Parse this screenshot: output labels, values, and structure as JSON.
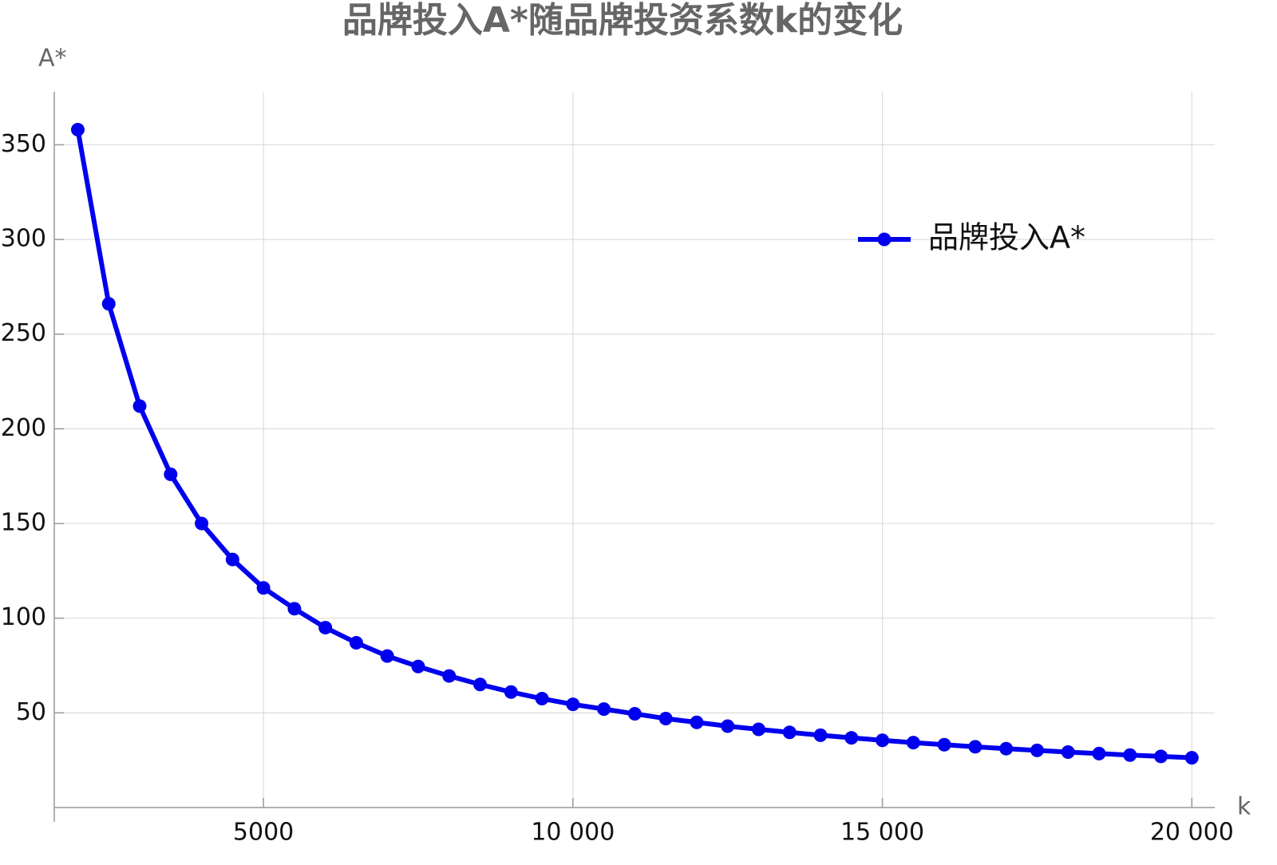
{
  "chart_data": {
    "type": "line",
    "title": "品牌投入A*随品牌投资系数k的变化",
    "xlabel": "k",
    "ylabel": "A*",
    "x": [
      2000,
      2500,
      3000,
      3500,
      4000,
      4500,
      5000,
      5500,
      6000,
      6500,
      7000,
      7500,
      8000,
      8500,
      9000,
      9500,
      10000,
      10500,
      11000,
      11500,
      12000,
      12500,
      13000,
      13500,
      14000,
      14500,
      15000,
      15500,
      16000,
      16500,
      17000,
      17500,
      18000,
      18500,
      19000,
      19500,
      20000
    ],
    "series": [
      {
        "name": "品牌投入A*",
        "color": "#0000ee",
        "values": [
          358,
          266,
          212,
          176,
          150,
          131,
          116,
          105,
          95,
          87,
          80,
          74.5,
          69.5,
          65,
          61,
          57.5,
          54.5,
          52,
          49.5,
          47,
          45,
          43,
          41.3,
          39.7,
          38.2,
          36.8,
          35.5,
          34.3,
          33.2,
          32.1,
          31.1,
          30.2,
          29.3,
          28.5,
          27.7,
          27,
          26.3
        ]
      }
    ],
    "xlim": [
      1620,
      20370
    ],
    "ylim": [
      0,
      378
    ],
    "xticks": [
      5000,
      {
        "value": 10000,
        "label": "10 000"
      },
      {
        "value": 15000,
        "label": "15 000"
      },
      {
        "value": 20000,
        "label": "20 000"
      }
    ],
    "yticks": [
      50,
      100,
      150,
      200,
      250,
      300,
      350
    ],
    "grid": true,
    "legend": "upper right"
  }
}
